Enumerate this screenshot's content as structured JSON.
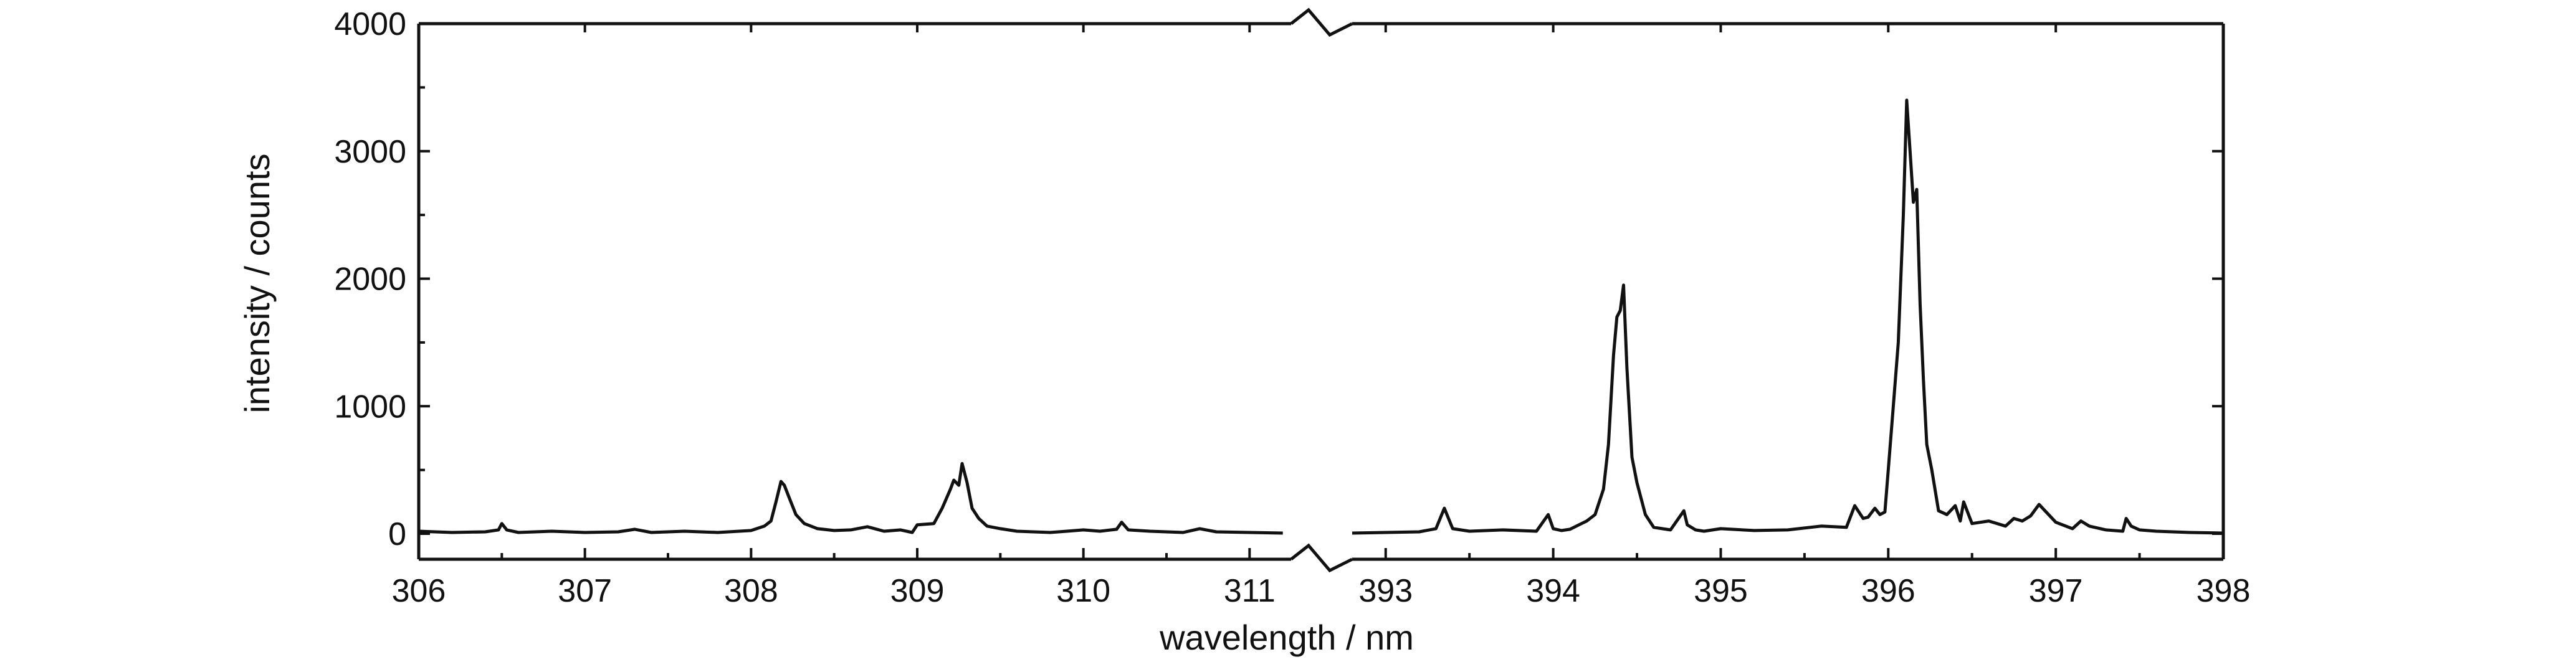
{
  "chart_data": {
    "type": "line",
    "title": "",
    "xlabel": "wavelength / nm",
    "ylabel": "intensity / counts",
    "ylim": [
      -200,
      4000
    ],
    "x_axis_break": true,
    "x_segments": [
      {
        "xlim": [
          306,
          311.25
        ],
        "ticks": [
          306,
          307,
          308,
          309,
          310,
          311
        ]
      },
      {
        "xlim": [
          392.8,
          398
        ],
        "ticks": [
          393,
          394,
          395,
          396,
          397,
          398
        ]
      }
    ],
    "yticks": [
      0,
      1000,
      2000,
      3000,
      4000
    ],
    "x_tick_labels": [
      "306",
      "307",
      "308",
      "309",
      "310",
      "311",
      "393",
      "394",
      "395",
      "396",
      "397",
      "398"
    ],
    "y_tick_labels": [
      "0",
      "1000",
      "2000",
      "3000",
      "4000"
    ],
    "grid": false,
    "legend": false,
    "series": [
      {
        "segment": 0,
        "x": [
          306.0,
          306.2,
          306.4,
          306.48,
          306.5,
          306.53,
          306.6,
          306.8,
          307.0,
          307.2,
          307.3,
          307.4,
          307.6,
          307.8,
          308.0,
          308.08,
          308.12,
          308.15,
          308.18,
          308.2,
          308.23,
          308.27,
          308.32,
          308.4,
          308.5,
          308.6,
          308.7,
          308.8,
          308.9,
          308.97,
          309.0,
          309.1,
          309.15,
          309.2,
          309.22,
          309.25,
          309.27,
          309.3,
          309.33,
          309.37,
          309.42,
          309.5,
          309.6,
          309.7,
          309.8,
          309.9,
          310.0,
          310.1,
          310.2,
          310.23,
          310.27,
          310.4,
          310.6,
          310.7,
          310.8,
          311.0,
          311.2
        ],
        "y": [
          20,
          10,
          15,
          30,
          80,
          30,
          10,
          20,
          10,
          15,
          35,
          10,
          20,
          10,
          25,
          60,
          100,
          250,
          410,
          380,
          280,
          150,
          80,
          40,
          25,
          30,
          55,
          20,
          30,
          10,
          70,
          80,
          200,
          350,
          420,
          380,
          550,
          400,
          200,
          120,
          60,
          40,
          20,
          15,
          10,
          20,
          30,
          20,
          35,
          90,
          30,
          20,
          10,
          40,
          15,
          10,
          5
        ]
      },
      {
        "segment": 1,
        "x": [
          392.8,
          393.0,
          393.2,
          393.3,
          393.35,
          393.4,
          393.5,
          393.7,
          393.9,
          393.97,
          394.0,
          394.05,
          394.1,
          394.2,
          394.25,
          394.3,
          394.33,
          394.36,
          394.38,
          394.4,
          394.42,
          394.44,
          394.47,
          394.5,
          394.55,
          394.6,
          394.7,
          394.78,
          394.8,
          394.85,
          394.9,
          395.0,
          395.2,
          395.4,
          395.6,
          395.75,
          395.8,
          395.85,
          395.88,
          395.92,
          395.95,
          395.98,
          396.0,
          396.03,
          396.06,
          396.09,
          396.11,
          396.13,
          396.15,
          396.17,
          396.19,
          396.21,
          396.23,
          396.26,
          396.3,
          396.35,
          396.4,
          396.43,
          396.45,
          396.5,
          396.6,
          396.7,
          396.75,
          396.8,
          396.85,
          396.9,
          397.0,
          397.1,
          397.15,
          397.2,
          397.3,
          397.4,
          397.42,
          397.45,
          397.5,
          397.6,
          397.8,
          398.0
        ],
        "y": [
          5,
          10,
          15,
          40,
          200,
          40,
          20,
          30,
          20,
          150,
          40,
          25,
          35,
          100,
          150,
          350,
          700,
          1400,
          1700,
          1750,
          1950,
          1300,
          600,
          400,
          150,
          50,
          30,
          180,
          70,
          30,
          20,
          40,
          25,
          30,
          60,
          50,
          220,
          120,
          130,
          200,
          150,
          170,
          500,
          1000,
          1500,
          2500,
          3400,
          3000,
          2600,
          2700,
          1800,
          1200,
          700,
          500,
          180,
          150,
          220,
          100,
          250,
          80,
          100,
          60,
          120,
          100,
          140,
          230,
          90,
          40,
          100,
          60,
          30,
          20,
          120,
          60,
          30,
          20,
          10,
          5
        ]
      }
    ]
  }
}
